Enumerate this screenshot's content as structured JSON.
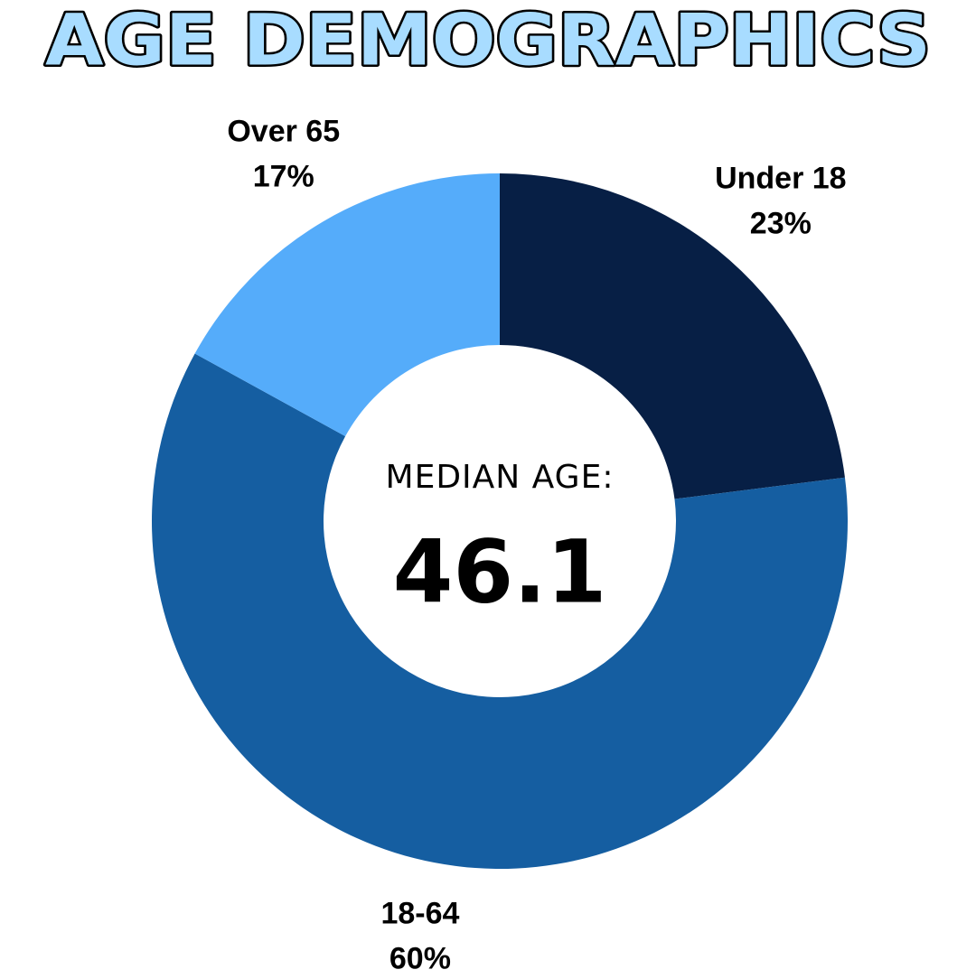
{
  "chart_data": {
    "type": "donut",
    "title": "AGE DEMOGRAPHICS",
    "categories": [
      "Under 18",
      "18-64",
      "Over 65"
    ],
    "values": [
      23,
      60,
      17
    ],
    "value_labels": [
      "23%",
      "60%",
      "17%"
    ],
    "colors": [
      "#071f45",
      "#155ea1",
      "#55acfa"
    ],
    "center_label": "MEDIAN AGE:",
    "center_value": 46.1
  }
}
